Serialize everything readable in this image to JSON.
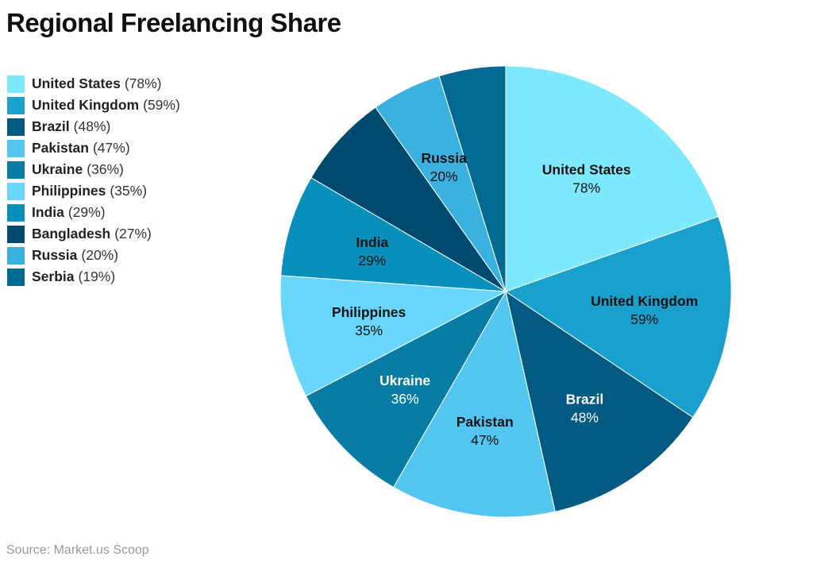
{
  "chart_data": {
    "type": "pie",
    "title": "Regional Freelancing Share",
    "source": "Source: Market.us Scoop",
    "legend_position": "top-left",
    "slices": [
      {
        "label": "United States",
        "value": 78,
        "display": "78%",
        "legend": "(78%)",
        "color": "#7ee9fd",
        "text_color": "#111111",
        "show_label": true
      },
      {
        "label": "United Kingdom",
        "value": 59,
        "display": "59%",
        "legend": "(59%)",
        "color": "#1aa0cd",
        "text_color": "#111111",
        "show_label": true
      },
      {
        "label": "Brazil",
        "value": 48,
        "display": "48%",
        "legend": "(48%)",
        "color": "#035a82",
        "text_color": "#ffffff",
        "show_label": true
      },
      {
        "label": "Pakistan",
        "value": 47,
        "display": "47%",
        "legend": "(47%)",
        "color": "#52c6f1",
        "text_color": "#111111",
        "show_label": true
      },
      {
        "label": "Ukraine",
        "value": 36,
        "display": "36%",
        "legend": "(36%)",
        "color": "#087ca5",
        "text_color": "#ffffff",
        "show_label": true
      },
      {
        "label": "Philippines",
        "value": 35,
        "display": "35%",
        "legend": "(35%)",
        "color": "#69d6fc",
        "text_color": "#111111",
        "show_label": true
      },
      {
        "label": "India",
        "value": 29,
        "display": "29%",
        "legend": "(29%)",
        "color": "#0890bd",
        "text_color": "#111111",
        "show_label": true
      },
      {
        "label": "Bangladesh",
        "value": 27,
        "display": "27%",
        "legend": "(27%)",
        "color": "#004a70",
        "text_color": "#ffffff",
        "show_label": false
      },
      {
        "label": "Russia",
        "value": 20,
        "display": "20%",
        "legend": "(20%)",
        "color": "#3bb1e0",
        "text_color": "#111111",
        "show_label": true
      },
      {
        "label": "Serbia",
        "value": 19,
        "display": "19%",
        "legend": "(19%)",
        "color": "#036a94",
        "text_color": "#ffffff",
        "show_label": false
      }
    ]
  }
}
